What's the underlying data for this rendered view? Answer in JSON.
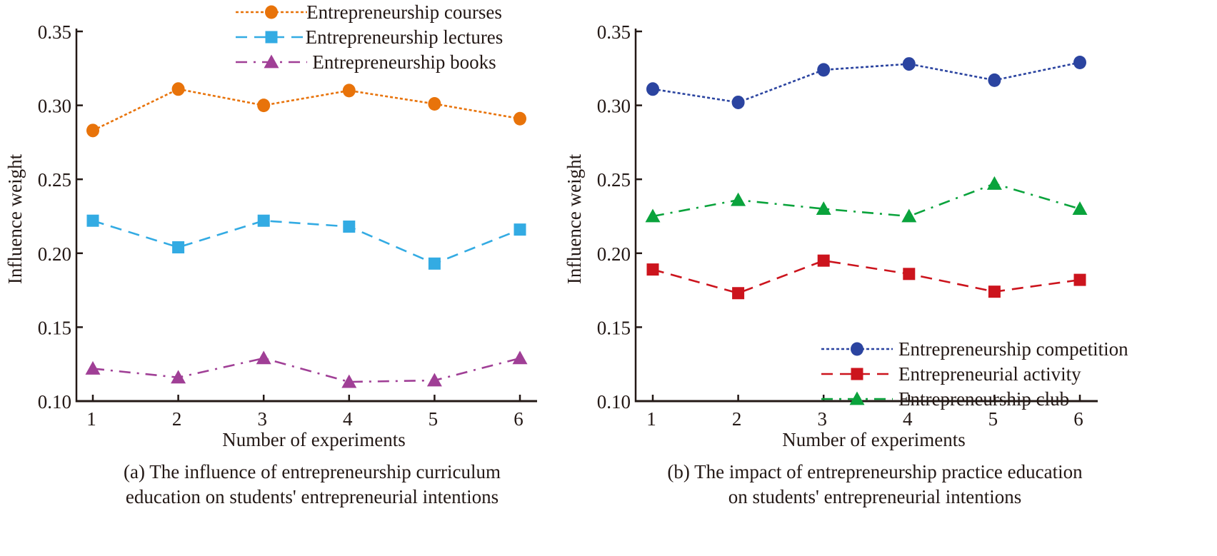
{
  "chart_data": [
    {
      "id": "a",
      "type": "line",
      "title": "",
      "caption_lines": [
        "(a) The influence of entrepreneurship curriculum",
        "education on students' entrepreneurial intentions"
      ],
      "xlabel": "Number of experiments",
      "ylabel": "Influence weight",
      "x": [
        1,
        2,
        3,
        4,
        5,
        6
      ],
      "xticks": [
        "1",
        "2",
        "3",
        "4",
        "5",
        "6"
      ],
      "ylim": [
        0.1,
        0.35
      ],
      "yticks": [
        "0.10",
        "0.15",
        "0.20",
        "0.25",
        "0.30",
        "0.35"
      ],
      "grid": false,
      "legend_position": "top-center",
      "series": [
        {
          "name": "Entrepreneurship courses",
          "color": "#e8730a",
          "marker": "circle",
          "dash": "dotted",
          "values": [
            0.283,
            0.311,
            0.3,
            0.31,
            0.301,
            0.291
          ]
        },
        {
          "name": "Entrepreneurship lectures",
          "color": "#33abe3",
          "marker": "square",
          "dash": "dashed",
          "values": [
            0.222,
            0.204,
            0.222,
            0.218,
            0.193,
            0.216
          ]
        },
        {
          "name": "Entrepreneurship books",
          "color": "#a03f96",
          "marker": "triangle",
          "dash": "dashdot",
          "values": [
            0.122,
            0.116,
            0.129,
            0.113,
            0.114,
            0.129
          ]
        }
      ]
    },
    {
      "id": "b",
      "type": "line",
      "title": "",
      "caption_lines": [
        "(b) The impact of entrepreneurship practice education",
        "on students' entrepreneurial intentions"
      ],
      "xlabel": "Number of experiments",
      "ylabel": "Influence weight",
      "x": [
        1,
        2,
        3,
        4,
        5,
        6
      ],
      "xticks": [
        "1",
        "2",
        "3",
        "4",
        "5",
        "6"
      ],
      "ylim": [
        0.1,
        0.35
      ],
      "yticks": [
        "0.10",
        "0.15",
        "0.20",
        "0.25",
        "0.30",
        "0.35"
      ],
      "grid": false,
      "legend_position": "bottom-right",
      "series": [
        {
          "name": "Entrepreneurship competition",
          "color": "#2b44a0",
          "marker": "circle",
          "dash": "dotted",
          "values": [
            0.311,
            0.302,
            0.324,
            0.328,
            0.317,
            0.329
          ]
        },
        {
          "name": "Entrepreneurial activity",
          "color": "#cc141d",
          "marker": "square",
          "dash": "dashed",
          "values": [
            0.189,
            0.173,
            0.195,
            0.186,
            0.174,
            0.182
          ]
        },
        {
          "name": "Entrepreneurship club",
          "color": "#0aa33c",
          "marker": "triangle",
          "dash": "dashdot",
          "values": [
            0.225,
            0.236,
            0.23,
            0.225,
            0.247,
            0.23
          ]
        }
      ]
    }
  ]
}
